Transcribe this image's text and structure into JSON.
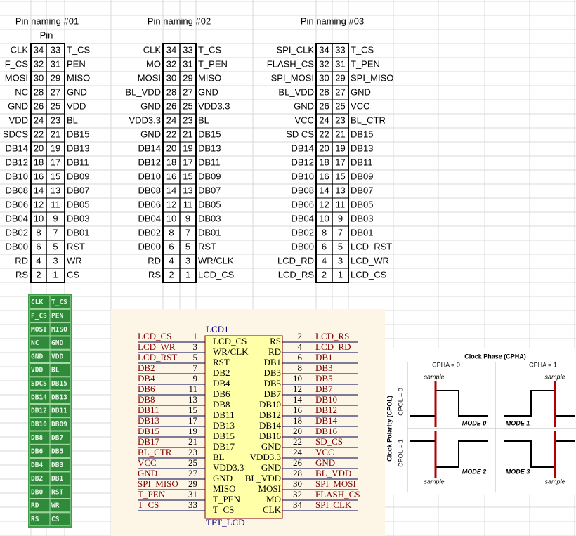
{
  "tables": [
    {
      "title": "Pin naming #01",
      "subheader": "Pin",
      "rows": [
        [
          "CLK",
          34,
          33,
          "T_CS"
        ],
        [
          "F_CS",
          32,
          31,
          "PEN"
        ],
        [
          "MOSI",
          30,
          29,
          "MISO"
        ],
        [
          "NC",
          28,
          27,
          "GND"
        ],
        [
          "GND",
          26,
          25,
          "VDD"
        ],
        [
          "VDD",
          24,
          23,
          "BL"
        ],
        [
          "SDCS",
          22,
          21,
          "DB15"
        ],
        [
          "DB14",
          20,
          19,
          "DB13"
        ],
        [
          "DB12",
          18,
          17,
          "DB11"
        ],
        [
          "DB10",
          16,
          15,
          "DB09"
        ],
        [
          "DB08",
          14,
          13,
          "DB07"
        ],
        [
          "DB06",
          12,
          11,
          "DB05"
        ],
        [
          "DB04",
          10,
          9,
          "DB03"
        ],
        [
          "DB02",
          8,
          7,
          "DB01"
        ],
        [
          "DB00",
          6,
          5,
          "RST"
        ],
        [
          "RD",
          4,
          3,
          "WR"
        ],
        [
          "RS",
          2,
          1,
          "CS"
        ]
      ]
    },
    {
      "title": "Pin naming #02",
      "rows": [
        [
          "CLK",
          34,
          33,
          "T_CS"
        ],
        [
          "MO",
          32,
          31,
          "T_PEN"
        ],
        [
          "MOSI",
          30,
          29,
          "MISO"
        ],
        [
          "BL_VDD",
          28,
          27,
          "GND"
        ],
        [
          "GND",
          26,
          25,
          "VDD3.3"
        ],
        [
          "VDD3.3",
          24,
          23,
          "BL"
        ],
        [
          "GND",
          22,
          21,
          "DB15"
        ],
        [
          "DB14",
          20,
          19,
          "DB13"
        ],
        [
          "DB12",
          18,
          17,
          "DB11"
        ],
        [
          "DB10",
          16,
          15,
          "DB09"
        ],
        [
          "DB08",
          14,
          13,
          "DB07"
        ],
        [
          "DB06",
          12,
          11,
          "DB05"
        ],
        [
          "DB04",
          10,
          9,
          "DB03"
        ],
        [
          "DB02",
          8,
          7,
          "DB01"
        ],
        [
          "DB00",
          6,
          5,
          "RST"
        ],
        [
          "RD",
          4,
          3,
          "WR/CLK"
        ],
        [
          "RS",
          2,
          1,
          "LCD_CS"
        ]
      ]
    },
    {
      "title": "Pin naming #03",
      "rows": [
        [
          "SPI_CLK",
          34,
          33,
          "T_CS"
        ],
        [
          "FLASH_CS",
          32,
          31,
          "T_PEN"
        ],
        [
          "SPI_MOSI",
          30,
          29,
          "SPI_MISO"
        ],
        [
          "BL_VDD",
          28,
          27,
          "GND"
        ],
        [
          "GND",
          26,
          25,
          "VCC"
        ],
        [
          "VCC",
          24,
          23,
          "BL_CTR"
        ],
        [
          "SD CS",
          22,
          21,
          "DB15"
        ],
        [
          "DB14",
          20,
          19,
          "DB13"
        ],
        [
          "DB12",
          18,
          17,
          "DB11"
        ],
        [
          "DB10",
          16,
          15,
          "DB09"
        ],
        [
          "DB08",
          14,
          13,
          "DB07"
        ],
        [
          "DB06",
          12,
          11,
          "DB05"
        ],
        [
          "DB04",
          10,
          9,
          "DB03"
        ],
        [
          "DB02",
          8,
          7,
          "DB01"
        ],
        [
          "DB00",
          6,
          5,
          "LCD_RST"
        ],
        [
          "LCD_RD",
          4,
          3,
          "LCD_WR"
        ],
        [
          "LCD_RS",
          2,
          1,
          "LCD_CS"
        ]
      ]
    }
  ],
  "board": {
    "rows": [
      [
        "CLK",
        "T_CS"
      ],
      [
        "F_CS",
        "PEN"
      ],
      [
        "MOSI",
        "MISO"
      ],
      [
        "NC",
        "GND"
      ],
      [
        "GND",
        "VDD"
      ],
      [
        "VDD",
        "BL"
      ],
      [
        "SDCS",
        "DB15"
      ],
      [
        "DB14",
        "DB13"
      ],
      [
        "DB12",
        "DB11"
      ],
      [
        "DB10",
        "DB09"
      ],
      [
        "DB8",
        "DB7"
      ],
      [
        "DB6",
        "DB5"
      ],
      [
        "DB4",
        "DB3"
      ],
      [
        "DB2",
        "DB1"
      ],
      [
        "DB0",
        "RST"
      ],
      [
        "RD",
        "WR"
      ],
      [
        "RS",
        "CS"
      ]
    ]
  },
  "schematic": {
    "designator": "LCD1",
    "part": "TFT_LCD",
    "left": [
      [
        "LCD_CS",
        1,
        "LCD_CS"
      ],
      [
        "LCD_WR",
        3,
        "WR/CLK"
      ],
      [
        "LCD_RST",
        5,
        "RST"
      ],
      [
        "DB2",
        7,
        "DB2"
      ],
      [
        "DB4",
        9,
        "DB4"
      ],
      [
        "DB6",
        11,
        "DB6"
      ],
      [
        "DB8",
        13,
        "DB8"
      ],
      [
        "DB11",
        15,
        "DB11"
      ],
      [
        "DB13",
        17,
        "DB13"
      ],
      [
        "DB15",
        19,
        "DB15"
      ],
      [
        "DB17",
        21,
        "DB17"
      ],
      [
        "BL_CTR",
        23,
        "BL"
      ],
      [
        "VCC",
        25,
        "VDD3.3"
      ],
      [
        "GND",
        27,
        "GND"
      ],
      [
        "SPI_MISO",
        29,
        "MISO"
      ],
      [
        "T_PEN",
        31,
        "T_PEN"
      ],
      [
        "T_CS",
        33,
        "T_CS"
      ]
    ],
    "right": [
      [
        "LCD_RS",
        2,
        "RS"
      ],
      [
        "LCD_RD",
        4,
        "RD"
      ],
      [
        "DB1",
        6,
        "DB1"
      ],
      [
        "DB3",
        8,
        "DB3"
      ],
      [
        "DB5",
        10,
        "DB5"
      ],
      [
        "DB7",
        12,
        "DB7"
      ],
      [
        "DB10",
        14,
        "DB10"
      ],
      [
        "DB12",
        16,
        "DB12"
      ],
      [
        "DB14",
        18,
        "DB14"
      ],
      [
        "DB16",
        20,
        "DB16"
      ],
      [
        "SD_CS",
        22,
        "GND"
      ],
      [
        "VCC",
        24,
        "VDD3.3"
      ],
      [
        "GND",
        26,
        "GND"
      ],
      [
        "BL_VDD",
        28,
        "BL_VDD"
      ],
      [
        "SPI_MOSI",
        30,
        "MOSI"
      ],
      [
        "FLASH_CS",
        32,
        "MO"
      ],
      [
        "SPI_CLK",
        34,
        "CLK"
      ]
    ]
  },
  "spi_modes": {
    "title": "Clock Phase (CPHA)",
    "cpha": [
      "CPHA = 0",
      "CPHA = 1"
    ],
    "ylabel": "Clock Polarity (CPOL)",
    "cpol": [
      "CPOL = 0",
      "CPOL = 1"
    ],
    "samples": [
      "sample",
      "sample",
      "sample",
      "sample"
    ],
    "modes": [
      "MODE 0",
      "MODE 1",
      "MODE 2",
      "MODE 3"
    ]
  }
}
